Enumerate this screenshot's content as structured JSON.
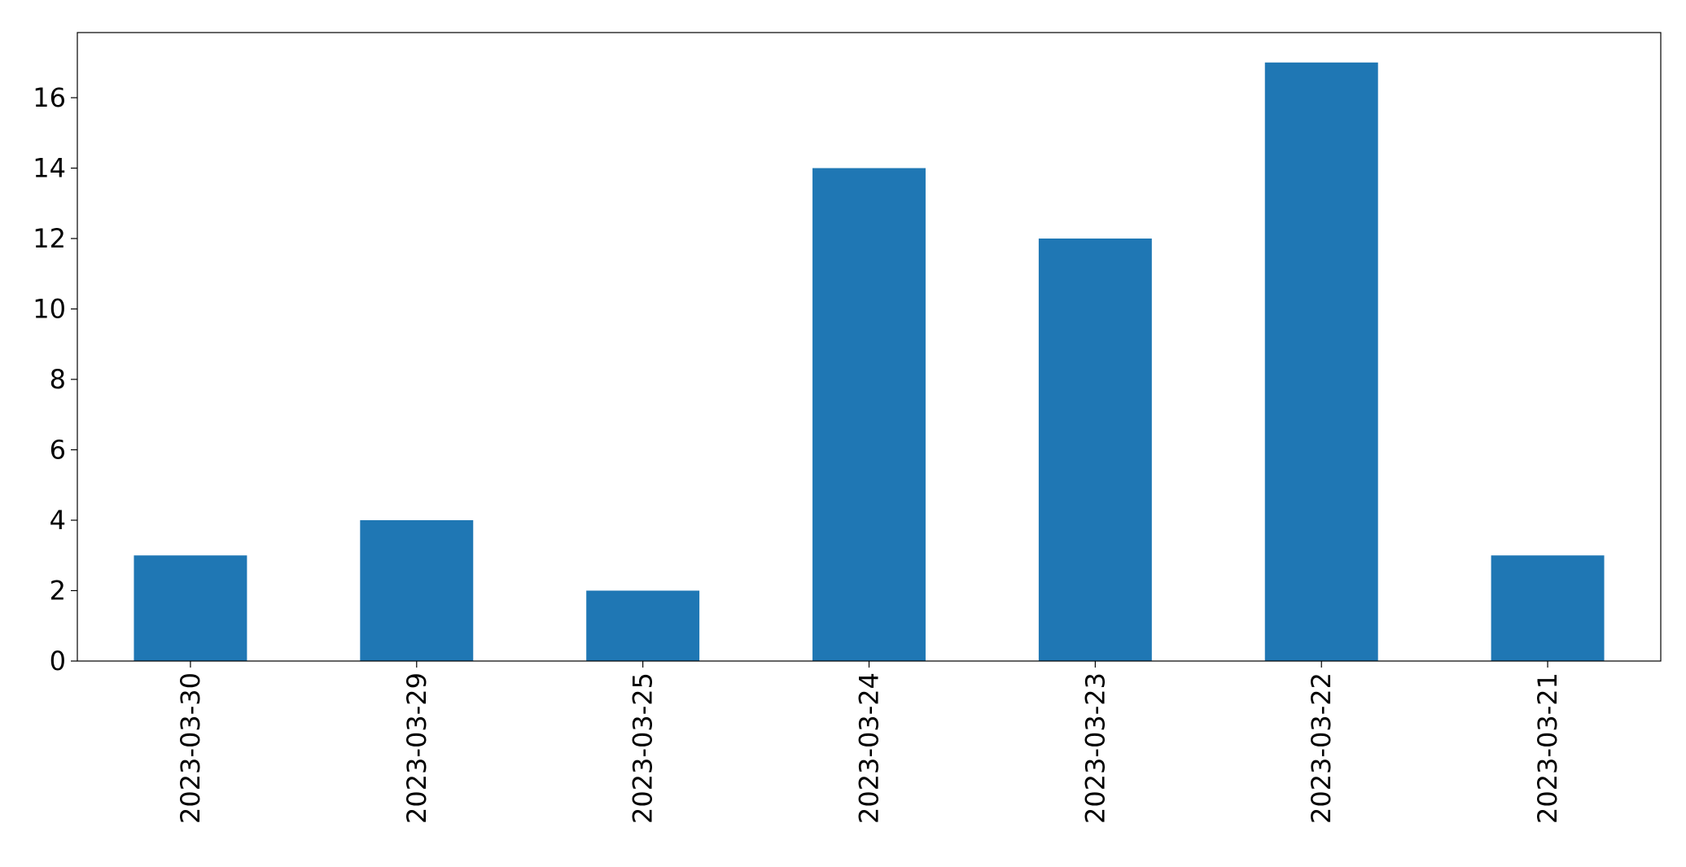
{
  "chart_data": {
    "type": "bar",
    "title": "",
    "xlabel": "",
    "ylabel": "",
    "categories": [
      "2023-03-30",
      "2023-03-29",
      "2023-03-25",
      "2023-03-24",
      "2023-03-23",
      "2023-03-22",
      "2023-03-21"
    ],
    "series": [
      {
        "values": [
          3,
          4,
          2,
          14,
          12,
          17,
          3
        ],
        "color": "#1f77b4"
      }
    ],
    "ylim": [
      0,
      17.85
    ],
    "yticks": [
      0,
      2,
      4,
      6,
      8,
      10,
      12,
      14,
      16
    ],
    "ytick_labels": [
      "0",
      "2",
      "4",
      "6",
      "8",
      "10",
      "12",
      "14",
      "16"
    ],
    "x_tick_rotation": "vertical",
    "grid": false,
    "legend": false
  }
}
